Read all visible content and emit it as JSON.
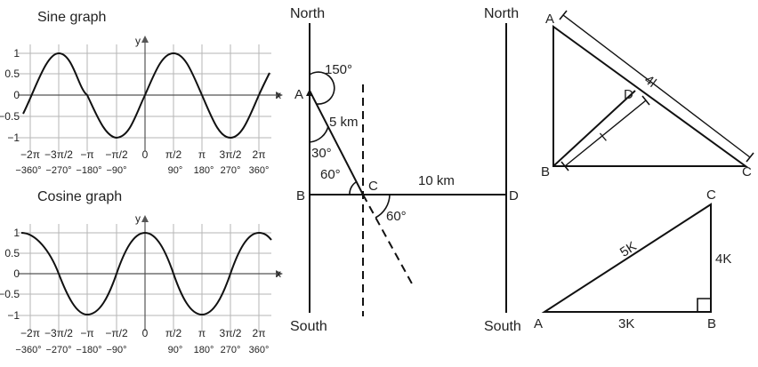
{
  "sine": {
    "title": "Sine graph",
    "y_axis": "y",
    "x_axis": "x",
    "y_ticks": [
      "1",
      "0.5",
      "0",
      "−0.5",
      "−1"
    ],
    "x_ticks": [
      "−2π",
      "−3π/2",
      "−π",
      "−π/2",
      "0",
      "π/2",
      "π",
      "3π/2",
      "2π"
    ],
    "deg_ticks": [
      "−360°",
      "−270°",
      "−180°",
      "−90°",
      "90°",
      "180°",
      "270°",
      "360°"
    ]
  },
  "cosine": {
    "title": "Cosine graph",
    "y_axis": "y",
    "x_axis": "x",
    "y_ticks": [
      "1",
      "0.5",
      "0",
      "−0.5",
      "−1"
    ],
    "x_ticks": [
      "−2π",
      "−3π/2",
      "−π",
      "−π/2",
      "0",
      "π/2",
      "π",
      "3π/2",
      "2π"
    ],
    "deg_ticks": [
      "−360°",
      "−270°",
      "−180°",
      "−90°",
      "90°",
      "180°",
      "270°",
      "360°"
    ]
  },
  "bearing": {
    "north_left": "North",
    "south_left": "South",
    "north_right": "North",
    "south_right": "South",
    "point_a": "A",
    "point_b": "B",
    "point_c": "C",
    "point_d": "D",
    "angle_150": "150°",
    "dist_5km": "5 km",
    "angle_30": "30°",
    "angle_60_left": "60°",
    "dist_10km": "10 km",
    "angle_60_right": "60°"
  },
  "triangle_top": {
    "a": "A",
    "b": "B",
    "c": "C",
    "d": "D",
    "len_ac": "4l",
    "len_bd": "l"
  },
  "triangle_bottom": {
    "a": "A",
    "b": "B",
    "c": "C",
    "hyp": "5K",
    "vert": "4K",
    "base": "3K"
  }
}
